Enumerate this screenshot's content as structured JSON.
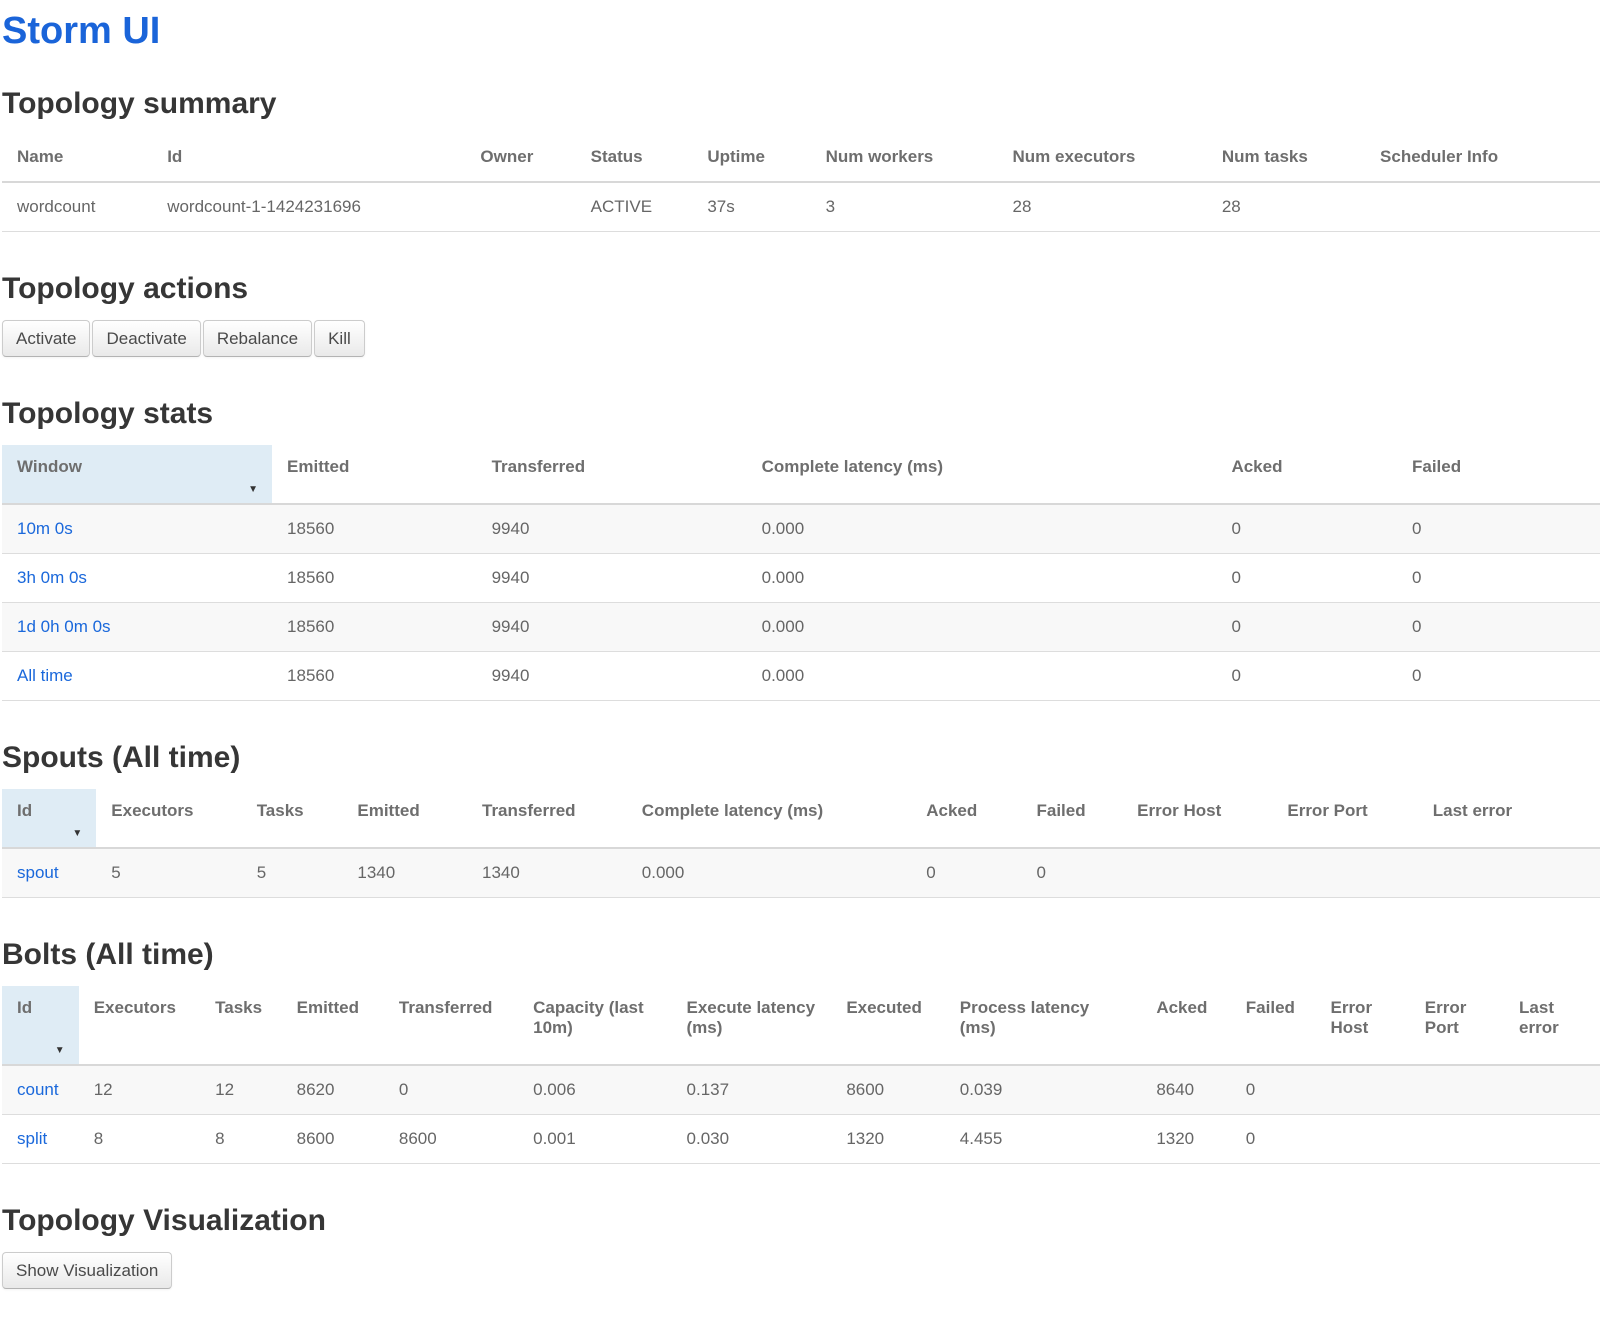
{
  "page": {
    "title": "Storm UI"
  },
  "colors": {
    "title_blue": "#1a64d9",
    "link_blue": "#1a68db",
    "sorted_header_bg": "#dfecf5",
    "stripe_gray": "#f8f8f8",
    "heading_gray": "#363636"
  },
  "summary": {
    "heading": "Topology summary",
    "table": {
      "sortable": false,
      "columns": [
        "Name",
        "Id",
        "Owner",
        "Status",
        "Uptime",
        "Num workers",
        "Num executors",
        "Num tasks",
        "Scheduler Info"
      ],
      "rows": [
        [
          "wordcount",
          "wordcount-1-1424231696",
          "",
          "ACTIVE",
          "37s",
          "3",
          "28",
          "28",
          ""
        ]
      ]
    }
  },
  "actions": {
    "heading": "Topology actions",
    "buttons": [
      "Activate",
      "Deactivate",
      "Rebalance",
      "Kill"
    ]
  },
  "stats": {
    "heading": "Topology stats",
    "table": {
      "sortable": true,
      "sorted_col": 0,
      "sort_icon": "▼",
      "link_cols": [
        0
      ],
      "columns": [
        "Window",
        "Emitted",
        "Transferred",
        "Complete latency (ms)",
        "Acked",
        "Failed"
      ],
      "rows": [
        [
          "10m 0s",
          "18560",
          "9940",
          "0.000",
          "0",
          "0"
        ],
        [
          "3h 0m 0s",
          "18560",
          "9940",
          "0.000",
          "0",
          "0"
        ],
        [
          "1d 0h 0m 0s",
          "18560",
          "9940",
          "0.000",
          "0",
          "0"
        ],
        [
          "All time",
          "18560",
          "9940",
          "0.000",
          "0",
          "0"
        ]
      ]
    }
  },
  "spouts": {
    "heading": "Spouts (All time)",
    "table": {
      "sortable": true,
      "sorted_col": 0,
      "sort_icon": "▼",
      "link_cols": [
        0
      ],
      "columns": [
        "Id",
        "Executors",
        "Tasks",
        "Emitted",
        "Transferred",
        "Complete latency (ms)",
        "Acked",
        "Failed",
        "Error Host",
        "Error Port",
        "Last error"
      ],
      "rows": [
        [
          "spout",
          "5",
          "5",
          "1340",
          "1340",
          "0.000",
          "0",
          "0",
          "",
          "",
          ""
        ]
      ]
    }
  },
  "bolts": {
    "heading": "Bolts (All time)",
    "table": {
      "sortable": true,
      "sorted_col": 0,
      "sort_icon": "▼",
      "link_cols": [
        0
      ],
      "columns": [
        "Id",
        "Executors",
        "Tasks",
        "Emitted",
        "Transferred",
        "Capacity (last 10m)",
        "Execute latency (ms)",
        "Executed",
        "Process latency (ms)",
        "Acked",
        "Failed",
        "Error Host",
        "Error Port",
        "Last error"
      ],
      "rows": [
        [
          "count",
          "12",
          "12",
          "8620",
          "0",
          "0.006",
          "0.137",
          "8600",
          "0.039",
          "8640",
          "0",
          "",
          "",
          ""
        ],
        [
          "split",
          "8",
          "8",
          "8600",
          "8600",
          "0.001",
          "0.030",
          "1320",
          "4.455",
          "1320",
          "0",
          "",
          "",
          ""
        ]
      ]
    }
  },
  "visualization": {
    "heading": "Topology Visualization",
    "button_label": "Show Visualization"
  }
}
